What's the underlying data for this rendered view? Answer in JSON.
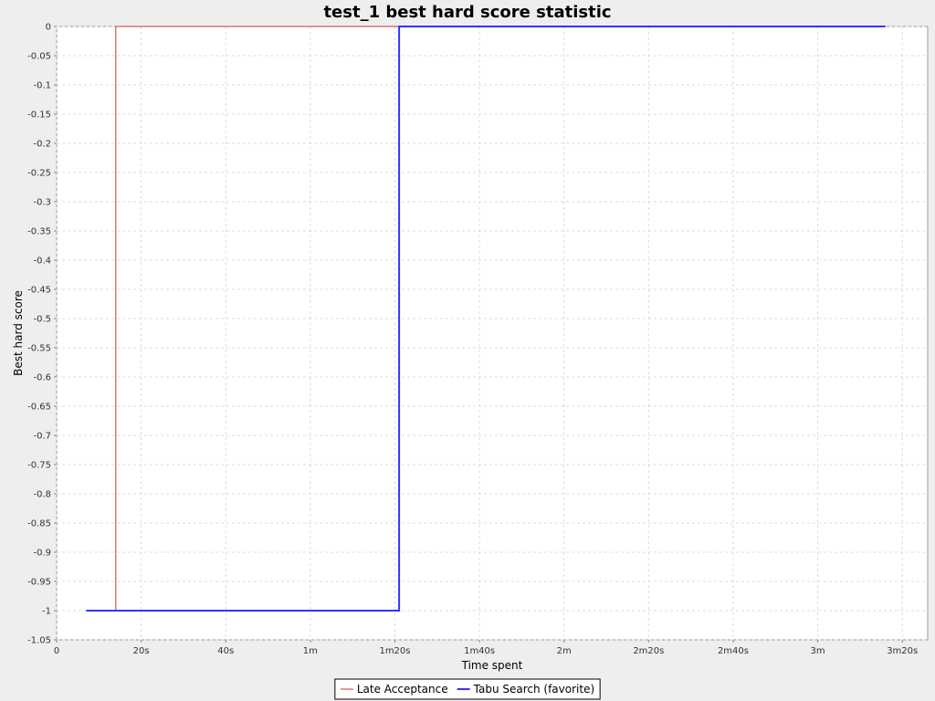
{
  "chart_data": {
    "type": "line",
    "title": "test_1 best hard score statistic",
    "xlabel": "Time spent",
    "ylabel": "Best hard score",
    "x_unit": "seconds",
    "xlim": [
      0,
      206
    ],
    "ylim": [
      -1.05,
      0
    ],
    "x_ticks": [
      {
        "value": 0,
        "label": "0"
      },
      {
        "value": 20,
        "label": "20s"
      },
      {
        "value": 40,
        "label": "40s"
      },
      {
        "value": 60,
        "label": "1m"
      },
      {
        "value": 80,
        "label": "1m20s"
      },
      {
        "value": 100,
        "label": "1m40s"
      },
      {
        "value": 120,
        "label": "2m"
      },
      {
        "value": 140,
        "label": "2m20s"
      },
      {
        "value": 160,
        "label": "2m40s"
      },
      {
        "value": 180,
        "label": "3m"
      },
      {
        "value": 200,
        "label": "3m20s"
      }
    ],
    "y_ticks": [
      {
        "value": 0,
        "label": "0"
      },
      {
        "value": -0.05,
        "label": "-0.05"
      },
      {
        "value": -0.1,
        "label": "-0.1"
      },
      {
        "value": -0.15,
        "label": "-0.15"
      },
      {
        "value": -0.2,
        "label": "-0.2"
      },
      {
        "value": -0.25,
        "label": "-0.25"
      },
      {
        "value": -0.3,
        "label": "-0.3"
      },
      {
        "value": -0.35,
        "label": "-0.35"
      },
      {
        "value": -0.4,
        "label": "-0.4"
      },
      {
        "value": -0.45,
        "label": "-0.45"
      },
      {
        "value": -0.5,
        "label": "-0.5"
      },
      {
        "value": -0.55,
        "label": "-0.55"
      },
      {
        "value": -0.6,
        "label": "-0.6"
      },
      {
        "value": -0.65,
        "label": "-0.65"
      },
      {
        "value": -0.7,
        "label": "-0.7"
      },
      {
        "value": -0.75,
        "label": "-0.75"
      },
      {
        "value": -0.8,
        "label": "-0.8"
      },
      {
        "value": -0.85,
        "label": "-0.85"
      },
      {
        "value": -0.9,
        "label": "-0.9"
      },
      {
        "value": -0.95,
        "label": "-0.95"
      },
      {
        "value": -1,
        "label": "-1"
      },
      {
        "value": -1.05,
        "label": "-1.05"
      }
    ],
    "grid": true,
    "legend_position": "bottom-center",
    "series": [
      {
        "name": "Late Acceptance",
        "color": "#cc3333",
        "style": "thin",
        "points": [
          {
            "x": 7,
            "y": -1
          },
          {
            "x": 14,
            "y": -1
          },
          {
            "x": 14,
            "y": 0
          },
          {
            "x": 81,
            "y": 0
          }
        ]
      },
      {
        "name": "Tabu Search (favorite)",
        "color": "#3333ff",
        "style": "thick",
        "points": [
          {
            "x": 7,
            "y": -1
          },
          {
            "x": 81,
            "y": -1
          },
          {
            "x": 81,
            "y": 0
          },
          {
            "x": 196,
            "y": 0
          }
        ]
      }
    ]
  }
}
